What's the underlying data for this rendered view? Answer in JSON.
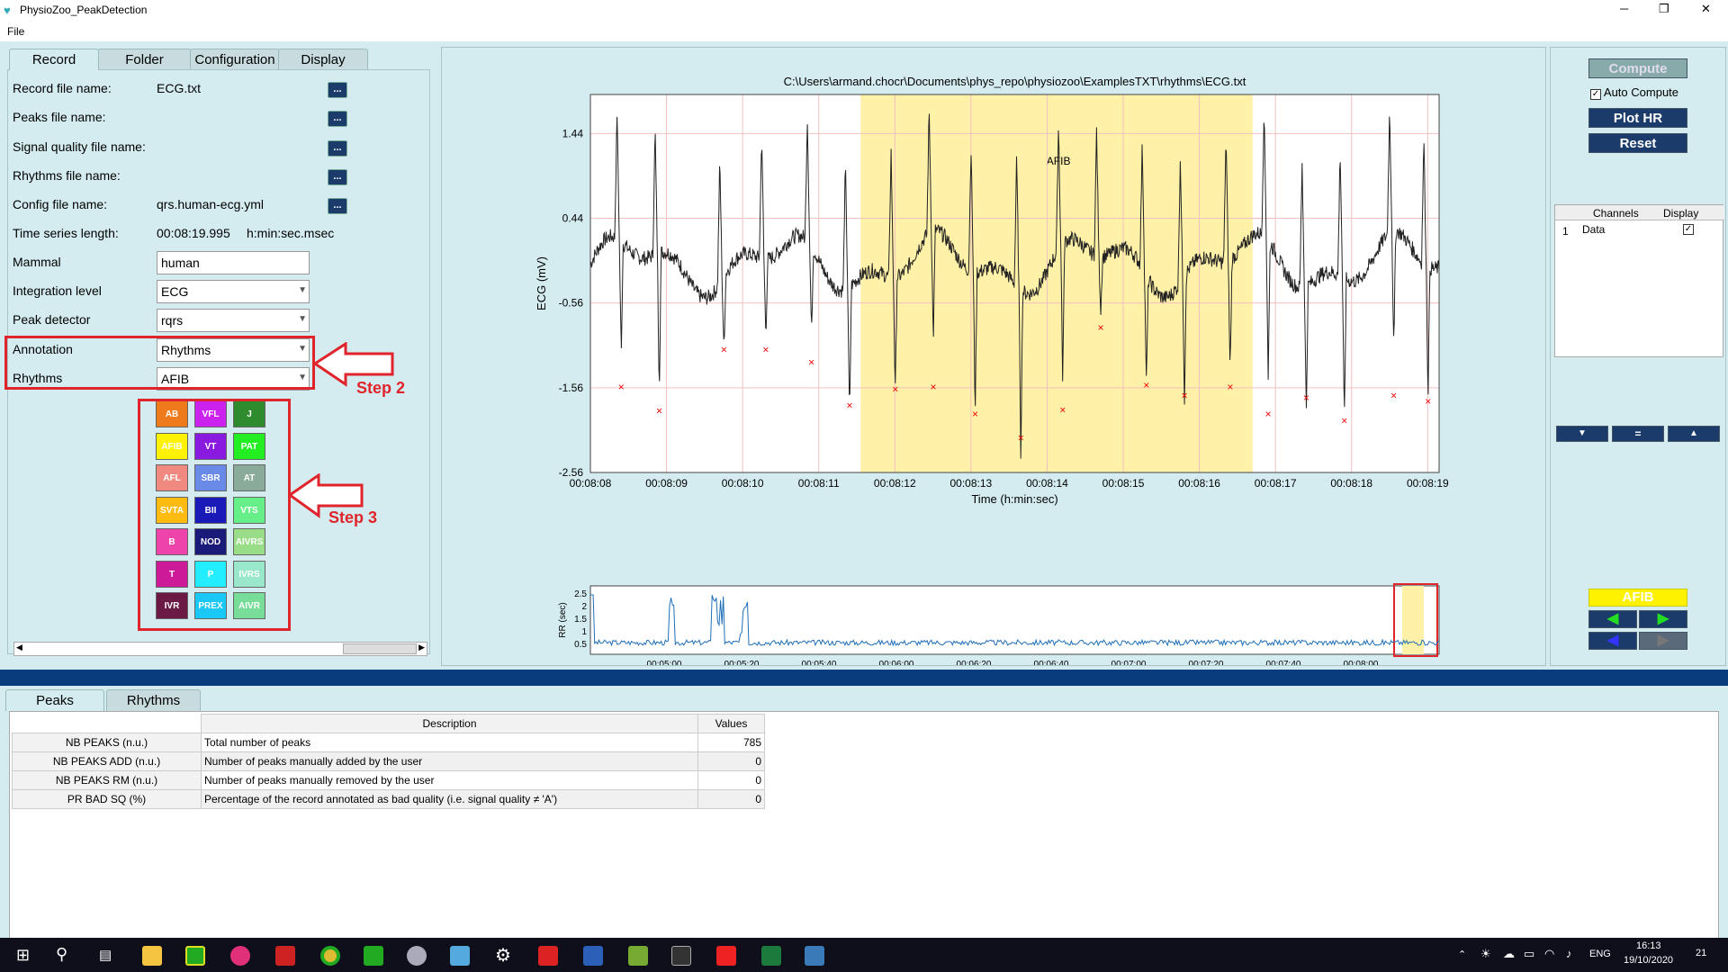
{
  "window": {
    "title": "PhysioZoo_PeakDetection",
    "controls": [
      "─",
      "❐",
      "✕"
    ]
  },
  "menu": {
    "file": "File"
  },
  "left_tabs": [
    "Record",
    "Folder",
    "Configuration",
    "Display"
  ],
  "record": {
    "record_file_label": "Record file name:",
    "record_file_value": "ECG.txt",
    "peaks_file_label": "Peaks file name:",
    "sq_file_label": "Signal quality file name:",
    "rhythms_file_label": "Rhythms file name:",
    "config_file_label": "Config file name:",
    "config_file_value": "qrs.human-ecg.yml",
    "ts_length_label": "Time series length:",
    "ts_length_value": "00:08:19.995",
    "ts_length_unit": "h:min:sec.msec",
    "mammal_label": "Mammal",
    "mammal_value": "human",
    "integration_label": "Integration level",
    "integration_value": "ECG",
    "peak_detector_label": "Peak detector",
    "peak_detector_value": "rqrs",
    "annotation_label": "Annotation",
    "annotation_value": "Rhythms",
    "rhythms_label": "Rhythms",
    "rhythms_value": "AFIB",
    "browse": "..."
  },
  "rhythm_buttons": [
    {
      "label": "AB",
      "color": "#ee7a1a"
    },
    {
      "label": "VFL",
      "color": "#cc22ee"
    },
    {
      "label": "J",
      "color": "#2e8b2e"
    },
    {
      "label": "AFIB",
      "color": "#fff200"
    },
    {
      "label": "VT",
      "color": "#8a1ae0"
    },
    {
      "label": "PAT",
      "color": "#22ee22"
    },
    {
      "label": "AFL",
      "color": "#f08a80"
    },
    {
      "label": "SBR",
      "color": "#6a8ae8"
    },
    {
      "label": "AT",
      "color": "#8aaa9a"
    },
    {
      "label": "SVTA",
      "color": "#ffbb10"
    },
    {
      "label": "BII",
      "color": "#1a1ab8"
    },
    {
      "label": "VTS",
      "color": "#66ee88"
    },
    {
      "label": "B",
      "color": "#ee44aa"
    },
    {
      "label": "NOD",
      "color": "#1a1a7a"
    },
    {
      "label": "AIVRS",
      "color": "#99dd88"
    },
    {
      "label": "T",
      "color": "#cc1a99"
    },
    {
      "label": "P",
      "color": "#22eeff"
    },
    {
      "label": "IVRS",
      "color": "#99e8cc"
    },
    {
      "label": "IVR",
      "color": "#6a1a44"
    },
    {
      "label": "PREX",
      "color": "#1ac8f8"
    },
    {
      "label": "AIVR",
      "color": "#77dd99"
    }
  ],
  "annotations": {
    "step2": "Step 2",
    "step3": "Step 3"
  },
  "chart_data": {
    "type": "line",
    "title": "C:\\Users\\armand.chocr\\Documents\\phys_repo\\physiozoo\\ExamplesTXT\\rhythms\\ECG.txt",
    "xlabel": "Time (h:min:sec)",
    "ylabel": "ECG (mV)",
    "y_ticks": [
      "1.44",
      "0.44",
      "-0.56",
      "-1.56",
      "-2.56"
    ],
    "x_ticks": [
      "00:08:08",
      "00:08:09",
      "00:08:10",
      "00:08:11",
      "00:08:12",
      "00:08:13",
      "00:08:14",
      "00:08:15",
      "00:08:16",
      "00:08:17",
      "00:08:18",
      "00:08:19"
    ],
    "ylim": [
      -2.56,
      1.9
    ],
    "highlight": {
      "label": "AFIB",
      "color": "#fff2a8"
    },
    "rr_ylabel": "RR (sec)",
    "rr_y_ticks": [
      "2.5",
      "2",
      "1.5",
      "1",
      "0.5"
    ],
    "rr_x_ticks": [
      "00:05:00",
      "00:05:20",
      "00:05:40",
      "00:06:00",
      "00:06:20",
      "00:06:40",
      "00:07:00",
      "00:07:20",
      "00:07:40",
      "00:08:00"
    ]
  },
  "right_panel": {
    "compute": "Compute",
    "auto_compute": "Auto Compute",
    "plot_hr": "Plot HR",
    "reset": "Reset",
    "channels_header": "Channels",
    "display_header": "Display",
    "row_index": "1",
    "row_channel": "Data",
    "nav_down": "▼",
    "nav_eq": "=",
    "nav_up": "▲",
    "afib_button": "AFIB"
  },
  "bottom_tabs": [
    "Peaks",
    "Rhythms"
  ],
  "results": {
    "desc_header": "Description",
    "values_header": "Values",
    "rows": [
      {
        "name": "NB PEAKS (n.u.)",
        "desc": "Total number of peaks",
        "value": "785"
      },
      {
        "name": "NB PEAKS ADD (n.u.)",
        "desc": "Number of peaks manually added by the user",
        "value": "0"
      },
      {
        "name": "NB PEAKS RM (n.u.)",
        "desc": "Number of peaks manually removed by the user",
        "value": "0"
      },
      {
        "name": "PR BAD SQ (%)",
        "desc": "Percentage of the record annotated as bad quality (i.e. signal quality ≠ 'A')",
        "value": "0"
      }
    ]
  },
  "taskbar": {
    "lang": "ENG",
    "time": "16:13",
    "date": "19/10/2020",
    "notif": "21"
  }
}
